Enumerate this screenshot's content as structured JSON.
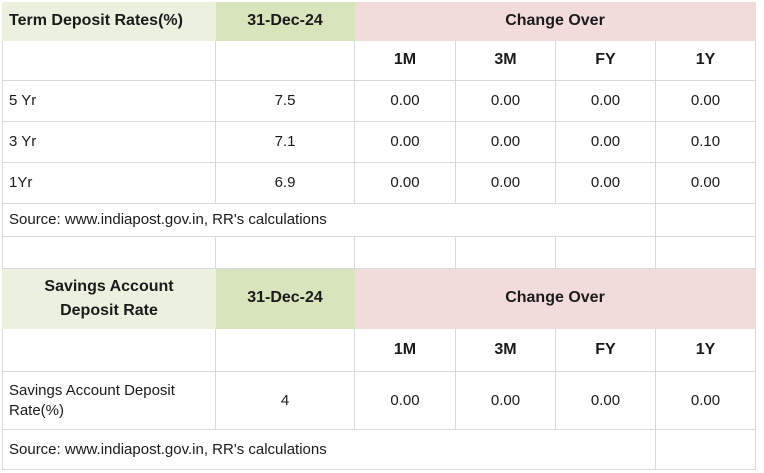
{
  "colors": {
    "header_green_light": "#EBF1DE",
    "header_green": "#D7E4BC",
    "header_pink": "#F2DCDB",
    "gridline": "#D9D9D9",
    "text": "#1A1A1A",
    "background": "#FFFFFF"
  },
  "t1": {
    "title": "Term Deposit Rates(%)",
    "date": "31-Dec-24",
    "change_over": "Change Over",
    "periods": [
      "1M",
      "3M",
      "FY",
      "1Y"
    ],
    "rows": [
      {
        "label": "5 Yr",
        "rate": "7.5",
        "ch": [
          "0.00",
          "0.00",
          "0.00",
          "0.00"
        ]
      },
      {
        "label": "3 Yr",
        "rate": "7.1",
        "ch": [
          "0.00",
          "0.00",
          "0.00",
          "0.10"
        ]
      },
      {
        "label": "1Yr",
        "rate": "6.9",
        "ch": [
          "0.00",
          "0.00",
          "0.00",
          "0.00"
        ]
      }
    ],
    "source": "Source: www.indiapost.gov.in, RR's calculations"
  },
  "t2": {
    "title": "Savings Account Deposit Rate",
    "date": "31-Dec-24",
    "change_over": "Change Over",
    "periods": [
      "1M",
      "3M",
      "FY",
      "1Y"
    ],
    "rows": [
      {
        "label": "Savings Account Deposit Rate(%)",
        "rate": "4",
        "ch": [
          "0.00",
          "0.00",
          "0.00",
          "0.00"
        ]
      }
    ],
    "source": "Source: www.indiapost.gov.in, RR's calculations"
  }
}
